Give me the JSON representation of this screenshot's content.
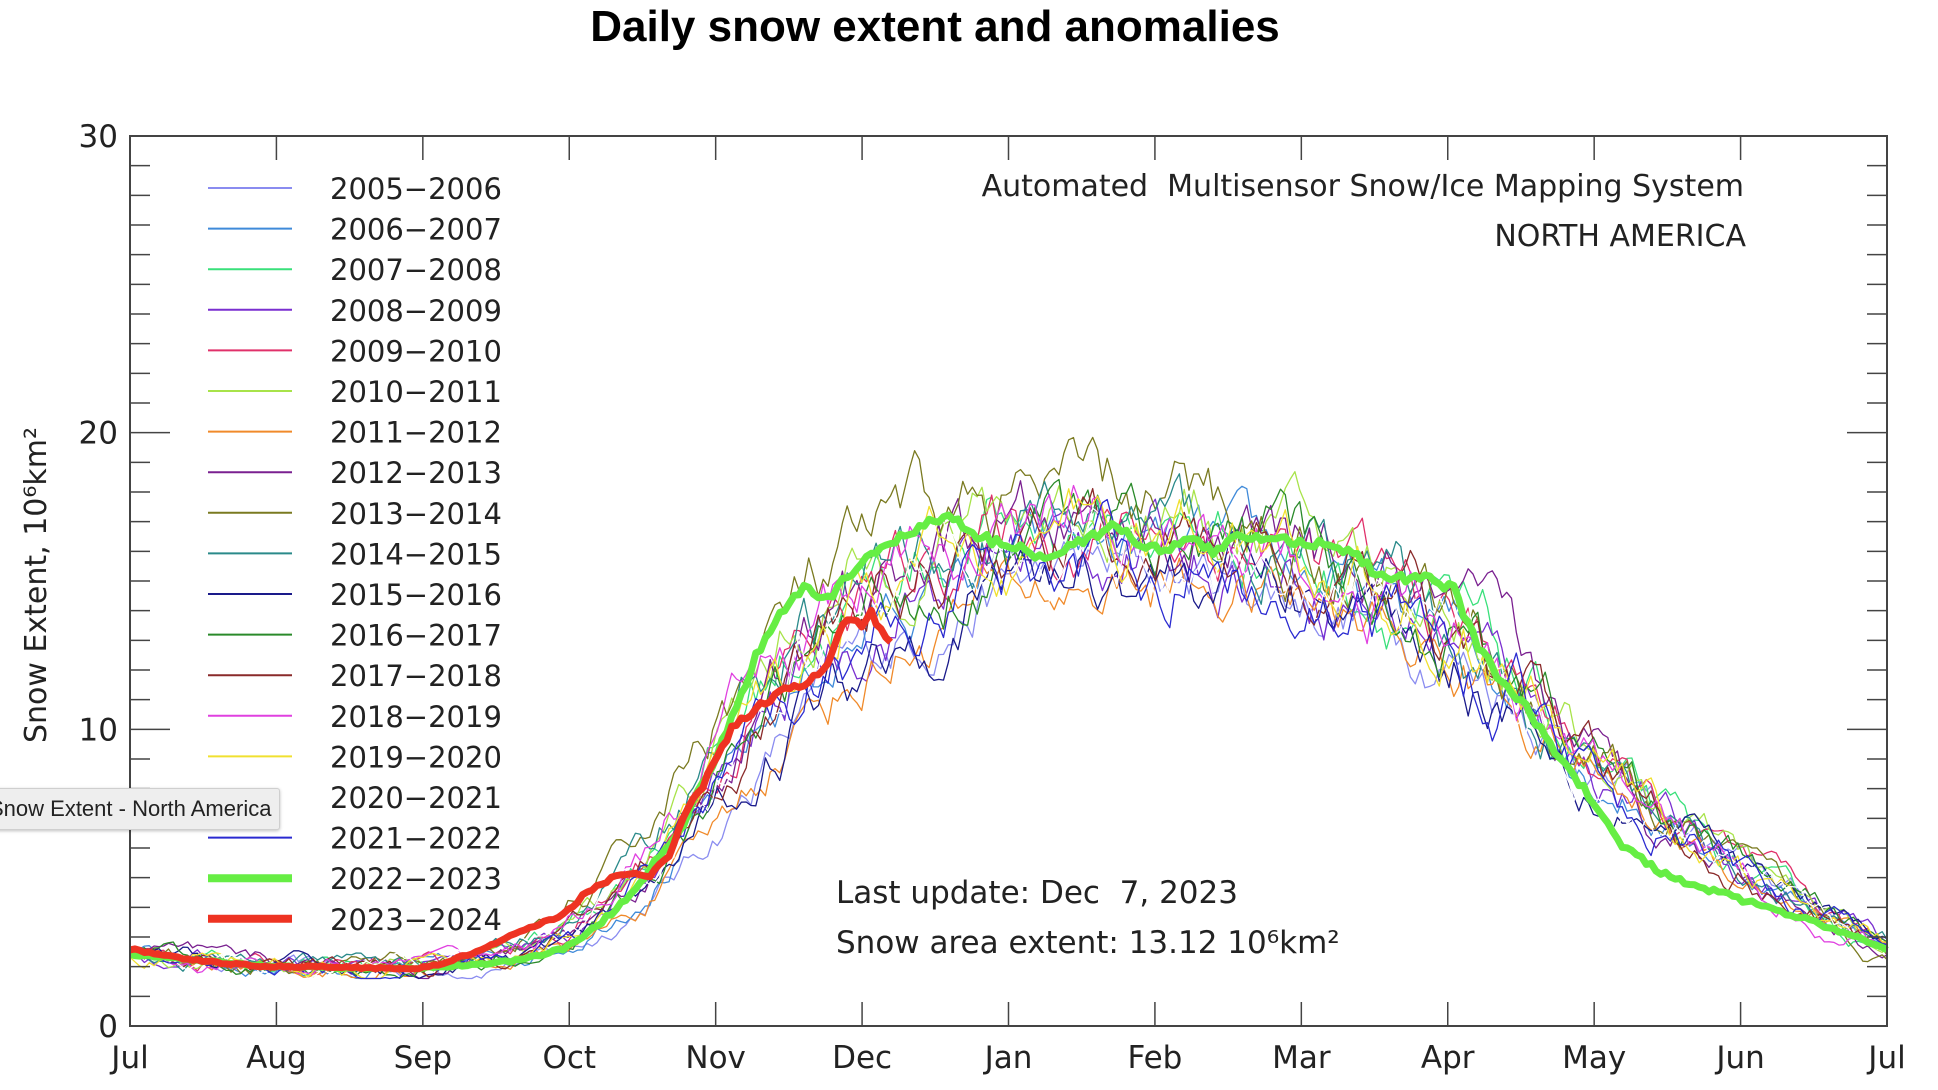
{
  "page": {
    "title": "Daily snow extent and anomalies"
  },
  "tooltip": {
    "text": "Snow Extent - North America"
  },
  "chart_data": {
    "type": "line",
    "title": "Automated  Multisensor Snow/Ice Mapping System",
    "subtitle": "NORTH AMERICA",
    "ylabel": "Snow Extent, 10⁶km²",
    "ylim": [
      0,
      30
    ],
    "yticks": [
      "0",
      "10",
      "20",
      "30"
    ],
    "xlabel": "",
    "x_months": [
      "Jul",
      "Aug",
      "Sep",
      "Oct",
      "Nov",
      "Dec",
      "Jan",
      "Feb",
      "Mar",
      "Apr",
      "May",
      "Jun",
      "Jul"
    ],
    "grid": false,
    "legend_position": "top-left",
    "annotation_update": "Last update: Dec  7, 2023",
    "annotation_extent": "Snow area extent: 13.12 10⁶km²",
    "x_unit": "day of season starting Jul 1",
    "series": [
      {
        "name": "2005−2006",
        "color": "#8a8cf0",
        "width": 1.3,
        "jitter": 0.8,
        "scale": 0.96,
        "shift": 6,
        "bias": -0.4
      },
      {
        "name": "2006−2007",
        "color": "#3f8ad9",
        "width": 1.3,
        "jitter": 0.8,
        "scale": 0.97,
        "shift": 3,
        "bias": 0.2
      },
      {
        "name": "2007−2008",
        "color": "#39e07a",
        "width": 1.3,
        "jitter": 0.9,
        "scale": 1.02,
        "shift": -2,
        "bias": 0.3
      },
      {
        "name": "2008−2009",
        "color": "#7a2fd0",
        "width": 1.3,
        "jitter": 0.9,
        "scale": 1.0,
        "shift": 2,
        "bias": -0.1
      },
      {
        "name": "2009−2010",
        "color": "#e0306a",
        "width": 1.3,
        "jitter": 0.9,
        "scale": 1.01,
        "shift": 0,
        "bias": 0.4
      },
      {
        "name": "2010−2011",
        "color": "#a8e34a",
        "width": 1.3,
        "jitter": 0.9,
        "scale": 1.03,
        "shift": -1,
        "bias": 0.7
      },
      {
        "name": "2011−2012",
        "color": "#f08a2a",
        "width": 1.3,
        "jitter": 0.8,
        "scale": 0.95,
        "shift": 5,
        "bias": -0.6
      },
      {
        "name": "2012−2013",
        "color": "#7a2090",
        "width": 1.3,
        "jitter": 0.9,
        "scale": 1.02,
        "shift": 1,
        "bias": 0.1
      },
      {
        "name": "2013−2014",
        "color": "#7a7a20",
        "width": 1.3,
        "jitter": 1.0,
        "scale": 1.04,
        "shift": -4,
        "bias": 0.8
      },
      {
        "name": "2014−2015",
        "color": "#2a8a8a",
        "width": 1.3,
        "jitter": 0.9,
        "scale": 1.02,
        "shift": -3,
        "bias": 0.3
      },
      {
        "name": "2015−2016",
        "color": "#1a1a8a",
        "width": 1.3,
        "jitter": 0.9,
        "scale": 0.98,
        "shift": 4,
        "bias": -0.5
      },
      {
        "name": "2016−2017",
        "color": "#2a8a2a",
        "width": 1.3,
        "jitter": 0.9,
        "scale": 1.0,
        "shift": 3,
        "bias": 0.2
      },
      {
        "name": "2017−2018",
        "color": "#8a2a2a",
        "width": 1.3,
        "jitter": 0.9,
        "scale": 1.01,
        "shift": 0,
        "bias": 0.0
      },
      {
        "name": "2018−2019",
        "color": "#e040e0",
        "width": 1.3,
        "jitter": 0.9,
        "scale": 1.01,
        "shift": -2,
        "bias": 0.4
      },
      {
        "name": "2019−2020",
        "color": "#f0e030",
        "width": 1.3,
        "jitter": 0.9,
        "scale": 1.0,
        "shift": 1,
        "bias": 0.2
      },
      {
        "name": "2020−2021",
        "color": "#ffffff",
        "width": 1.3,
        "jitter": 0.9,
        "scale": 1.0,
        "shift": 0,
        "bias": 0.0
      },
      {
        "name": "2021−2022",
        "color": "#2a2ad0",
        "width": 1.3,
        "jitter": 0.9,
        "scale": 0.99,
        "shift": 2,
        "bias": -0.2
      },
      {
        "name": "2022−2023",
        "color": "#66ee44",
        "width": 7,
        "jitter": 0.3,
        "points": [
          [
            0,
            2.4
          ],
          [
            15,
            2.2
          ],
          [
            30,
            2.0
          ],
          [
            45,
            1.95
          ],
          [
            60,
            1.95
          ],
          [
            70,
            2.05
          ],
          [
            80,
            2.2
          ],
          [
            90,
            2.6
          ],
          [
            95,
            3.1
          ],
          [
            100,
            3.8
          ],
          [
            105,
            4.6
          ],
          [
            110,
            5.8
          ],
          [
            115,
            6.8
          ],
          [
            120,
            8.5
          ],
          [
            125,
            10.3
          ],
          [
            130,
            12.5
          ],
          [
            135,
            13.8
          ],
          [
            140,
            14.8
          ],
          [
            145,
            14.4
          ],
          [
            150,
            15.3
          ],
          [
            155,
            16.0
          ],
          [
            160,
            16.5
          ],
          [
            165,
            16.9
          ],
          [
            170,
            17.2
          ],
          [
            175,
            16.6
          ],
          [
            180,
            16.3
          ],
          [
            185,
            16.1
          ],
          [
            190,
            15.8
          ],
          [
            195,
            16.2
          ],
          [
            200,
            16.5
          ],
          [
            205,
            16.9
          ],
          [
            210,
            16.2
          ],
          [
            215,
            16.0
          ],
          [
            220,
            16.4
          ],
          [
            225,
            16.0
          ],
          [
            230,
            16.5
          ],
          [
            240,
            16.4
          ],
          [
            250,
            16.2
          ],
          [
            255,
            15.8
          ],
          [
            260,
            15.1
          ],
          [
            270,
            15.1
          ],
          [
            275,
            14.7
          ],
          [
            280,
            12.8
          ],
          [
            285,
            11.6
          ],
          [
            290,
            10.8
          ],
          [
            295,
            9.5
          ],
          [
            300,
            8.5
          ],
          [
            305,
            7.2
          ],
          [
            310,
            6.1
          ],
          [
            315,
            5.5
          ],
          [
            320,
            5.0
          ],
          [
            330,
            4.5
          ],
          [
            340,
            4.0
          ],
          [
            350,
            3.5
          ],
          [
            360,
            2.9
          ],
          [
            365,
            2.6
          ]
        ]
      },
      {
        "name": "2023−2024",
        "color": "#ee3322",
        "width": 7,
        "jitter": 0.25,
        "points": [
          [
            0,
            2.6
          ],
          [
            10,
            2.3
          ],
          [
            20,
            2.1
          ],
          [
            30,
            2.0
          ],
          [
            40,
            2.0
          ],
          [
            50,
            1.95
          ],
          [
            60,
            1.95
          ],
          [
            65,
            2.1
          ],
          [
            70,
            2.4
          ],
          [
            75,
            2.7
          ],
          [
            80,
            3.1
          ],
          [
            85,
            3.4
          ],
          [
            90,
            3.8
          ],
          [
            95,
            4.5
          ],
          [
            100,
            5.0
          ],
          [
            105,
            5.1
          ],
          [
            108,
            5.1
          ],
          [
            112,
            5.7
          ],
          [
            115,
            7.0
          ],
          [
            120,
            8.4
          ],
          [
            125,
            10.0
          ],
          [
            130,
            10.7
          ],
          [
            135,
            11.3
          ],
          [
            140,
            11.5
          ],
          [
            145,
            12.2
          ],
          [
            148,
            13.6
          ],
          [
            150,
            13.8
          ],
          [
            152,
            13.5
          ],
          [
            154,
            13.9
          ],
          [
            156,
            13.3
          ],
          [
            158,
            12.9
          ]
        ]
      }
    ]
  }
}
